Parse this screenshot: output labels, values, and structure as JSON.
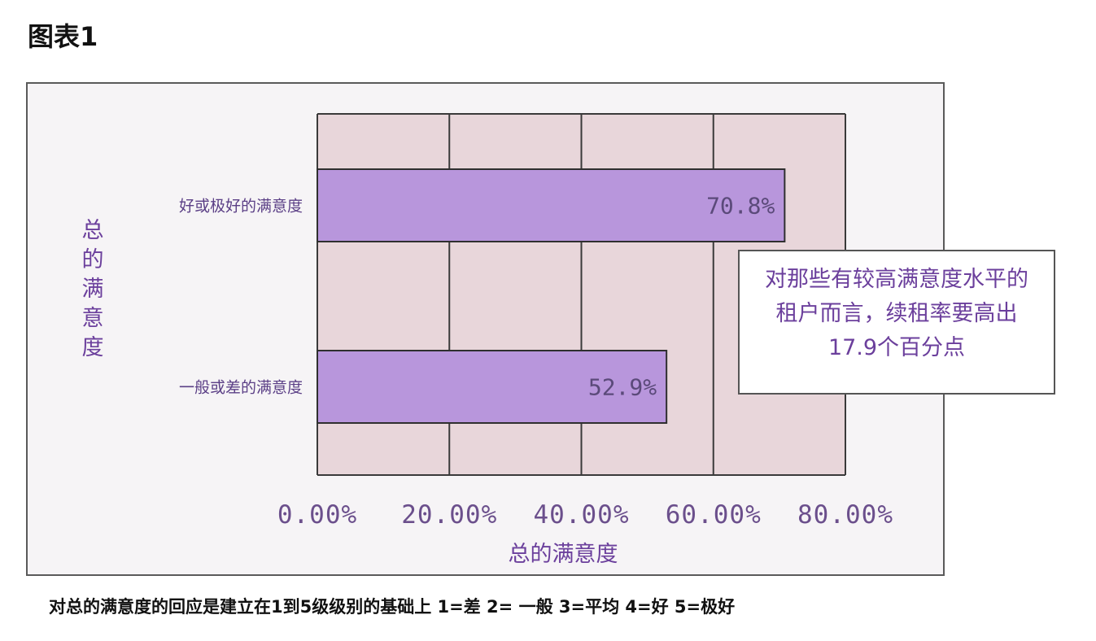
{
  "figure_title": "图表1",
  "footnote": "对总的满意度的回应是建立在1到5级级别的基础上  1=差  2=  一般  3=平均  4=好  5=极好",
  "callout": "对那些有较高满意度水平的租户而言，续租率要高出 17.9个百分点",
  "chart_data": {
    "type": "bar",
    "orientation": "horizontal",
    "categories": [
      "好或极好的满意度",
      "一般或差的满意度"
    ],
    "values": [
      70.8,
      52.9
    ],
    "value_labels": [
      "70.8%",
      "52.9%"
    ],
    "xlabel": "总的满意度",
    "ylabel": "总的满意度",
    "xlim": [
      0,
      80
    ],
    "xticks": [
      0,
      20,
      40,
      60,
      80
    ],
    "xtick_labels": [
      "0.00%",
      "20.00%",
      "40.00%",
      "60.00%",
      "80.00%"
    ],
    "grid": true,
    "colors": {
      "bar": "#b896dc",
      "plot_background": "#e8d6da",
      "text": "#6b3f9c"
    }
  }
}
